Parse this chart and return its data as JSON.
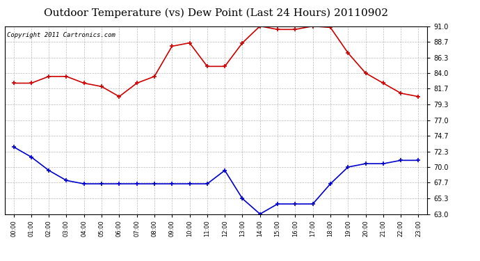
{
  "title": "Outdoor Temperature (vs) Dew Point (Last 24 Hours) 20110902",
  "copyright": "Copyright 2011 Cartronics.com",
  "x_labels": [
    "00:00",
    "01:00",
    "02:00",
    "03:00",
    "04:00",
    "05:00",
    "06:00",
    "07:00",
    "08:00",
    "09:00",
    "10:00",
    "11:00",
    "12:00",
    "13:00",
    "14:00",
    "15:00",
    "16:00",
    "17:00",
    "18:00",
    "19:00",
    "20:00",
    "21:00",
    "22:00",
    "23:00"
  ],
  "temp_data": [
    82.5,
    82.5,
    83.5,
    83.5,
    82.5,
    82.0,
    80.5,
    82.5,
    83.5,
    88.0,
    88.5,
    85.0,
    85.0,
    88.5,
    91.0,
    90.5,
    90.5,
    91.0,
    90.8,
    87.0,
    84.0,
    82.5,
    81.0,
    80.5
  ],
  "dew_data": [
    73.0,
    71.5,
    69.5,
    68.0,
    67.5,
    67.5,
    67.5,
    67.5,
    67.5,
    67.5,
    67.5,
    67.5,
    69.5,
    65.3,
    63.0,
    64.5,
    64.5,
    64.5,
    67.5,
    70.0,
    70.5,
    70.5,
    71.0,
    71.0
  ],
  "temp_color": "#cc0000",
  "dew_color": "#0000cc",
  "ylim": [
    63.0,
    91.0
  ],
  "yticks": [
    63.0,
    65.3,
    67.7,
    70.0,
    72.3,
    74.7,
    77.0,
    79.3,
    81.7,
    84.0,
    86.3,
    88.7,
    91.0
  ],
  "bg_color": "#ffffff",
  "plot_bg": "#ffffff",
  "grid_color": "#aaaaaa",
  "title_fontsize": 11,
  "copyright_fontsize": 6.5
}
